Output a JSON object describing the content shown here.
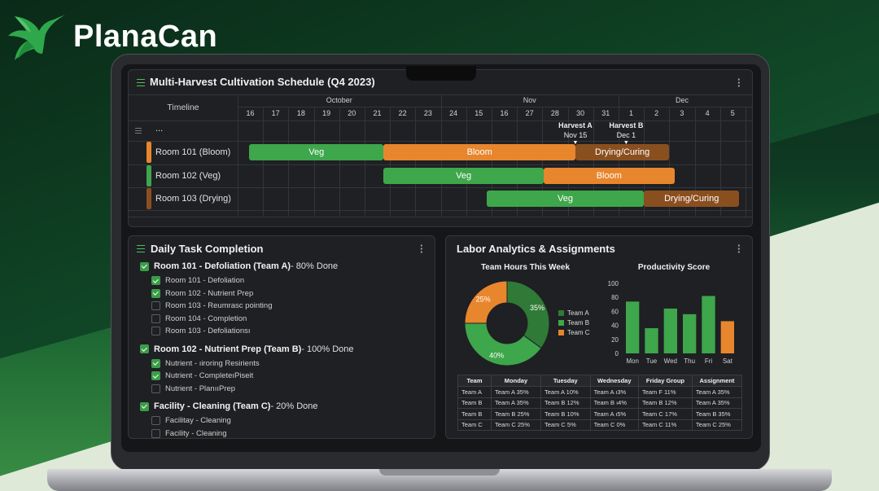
{
  "brand": {
    "name": "PlanaCan",
    "logo_icon": "hummingbird-logo-icon"
  },
  "colors": {
    "veg": "#3ea64b",
    "bloom": "#e8862d",
    "drying": "#8a4f1f",
    "accent": "#4cbf5a"
  },
  "gantt": {
    "title": "Multi-Harvest Cultivation Schedule (Q4 2023)",
    "timeline_label": "Timeline",
    "months": [
      "October",
      "Nov",
      "Dec"
    ],
    "days": [
      "16",
      "17",
      "18",
      "19",
      "20",
      "21",
      "22",
      "23",
      "24",
      "15",
      "16",
      "27",
      "28",
      "30",
      "31",
      "1",
      "2",
      "3",
      "4",
      "5"
    ],
    "ellipsis": "...",
    "milestones": [
      {
        "title": "Harvest A",
        "date": "Nov 15"
      },
      {
        "title": "Harvest B",
        "date": "Dec 1"
      }
    ],
    "rows": [
      {
        "label": "Room 101 (Bloom)",
        "bars": [
          {
            "label": "Veg",
            "phase": "veg"
          },
          {
            "label": "Bloom",
            "phase": "bloom"
          },
          {
            "label": "Drying/Curing",
            "phase": "drying"
          }
        ]
      },
      {
        "label": "Room 102 (Veg)",
        "bars": [
          {
            "label": "Veg",
            "phase": "veg"
          },
          {
            "label": "Bloom",
            "phase": "bloom"
          }
        ]
      },
      {
        "label": "Room 103 (Drying)",
        "bars": [
          {
            "label": "Veg",
            "phase": "veg"
          },
          {
            "label": "Drying/Curing",
            "phase": "drying"
          }
        ]
      }
    ]
  },
  "tasks": {
    "title": "Daily Task Completion",
    "groups": [
      {
        "name": "Room 101 - Defoliation (Team A)",
        "status": " - 80% Done",
        "checked": true,
        "items": [
          {
            "label": "Room 101 - Defoliation",
            "checked": true
          },
          {
            "label": "Room 102 - Nutrient Prep",
            "checked": true
          },
          {
            "label": "Room 103 - Reumrasc pointing",
            "checked": false
          },
          {
            "label": "Room 104 - Completion",
            "checked": false
          },
          {
            "label": "Room 103 - Defoliationsı",
            "checked": false
          }
        ]
      },
      {
        "name": "Room 102 - Nutrient Prep (Team B)",
        "status": " - 100% Done",
        "checked": true,
        "items": [
          {
            "label": "Nutrient - ıiroring Resirients",
            "checked": true
          },
          {
            "label": "Nutrient - CompleteıPiseit",
            "checked": true
          },
          {
            "label": "Nutrient - PlanııPrep",
            "checked": false
          }
        ]
      },
      {
        "name": "Facility - Cleaning (Team C)",
        "status": " - 20% Done",
        "checked": true,
        "items": [
          {
            "label": "Facilitay - Cleaning",
            "checked": false
          },
          {
            "label": "Facility - Cleaning",
            "checked": false
          }
        ]
      }
    ]
  },
  "labor": {
    "title": "Labor Analytics & Assignments",
    "hours": {
      "title": "Team Hours This Week",
      "slices": [
        {
          "team": "Team A",
          "value": 35,
          "label": "35%",
          "color": "#2f7a36"
        },
        {
          "team": "Team B",
          "value": 40,
          "label": "40%",
          "color": "#3ea64b"
        },
        {
          "team": "Team C",
          "value": 25,
          "label": "25%",
          "color": "#e8862d"
        }
      ]
    },
    "productivity": {
      "title": "Productivity Score",
      "chart_data": {
        "type": "bar",
        "categories": [
          "Mon",
          "Tue",
          "Wed",
          "Thu",
          "Fri",
          "Sat"
        ],
        "values": [
          74,
          36,
          64,
          56,
          82,
          46
        ],
        "ylim": [
          0,
          100
        ],
        "yticks": [
          "100",
          "80",
          "60",
          "40",
          "20",
          "0"
        ]
      }
    },
    "table": {
      "headers": [
        "Team",
        "Monday",
        "Tuesday",
        "Wednesday",
        "Friday Group",
        "Assignment"
      ],
      "rows": [
        [
          "Team A",
          "Team A 35%",
          "Team A 10%",
          "Team A ı3%",
          "Team F 11%",
          "Team A 35%"
        ],
        [
          "Team B",
          "Team A 35%",
          "Team B 12%",
          "Team B ı4%",
          "Team B 12%",
          "Team A 35%"
        ],
        [
          "Team B",
          "Team B 25%",
          "Team B 10%",
          "Team A ı5%",
          "Team C 17%",
          "Team B 35%"
        ],
        [
          "Team C",
          "Team C 25%",
          "Team C 5%",
          "Team C 0%",
          "Team C 11%",
          "Team C 25%"
        ]
      ]
    }
  }
}
